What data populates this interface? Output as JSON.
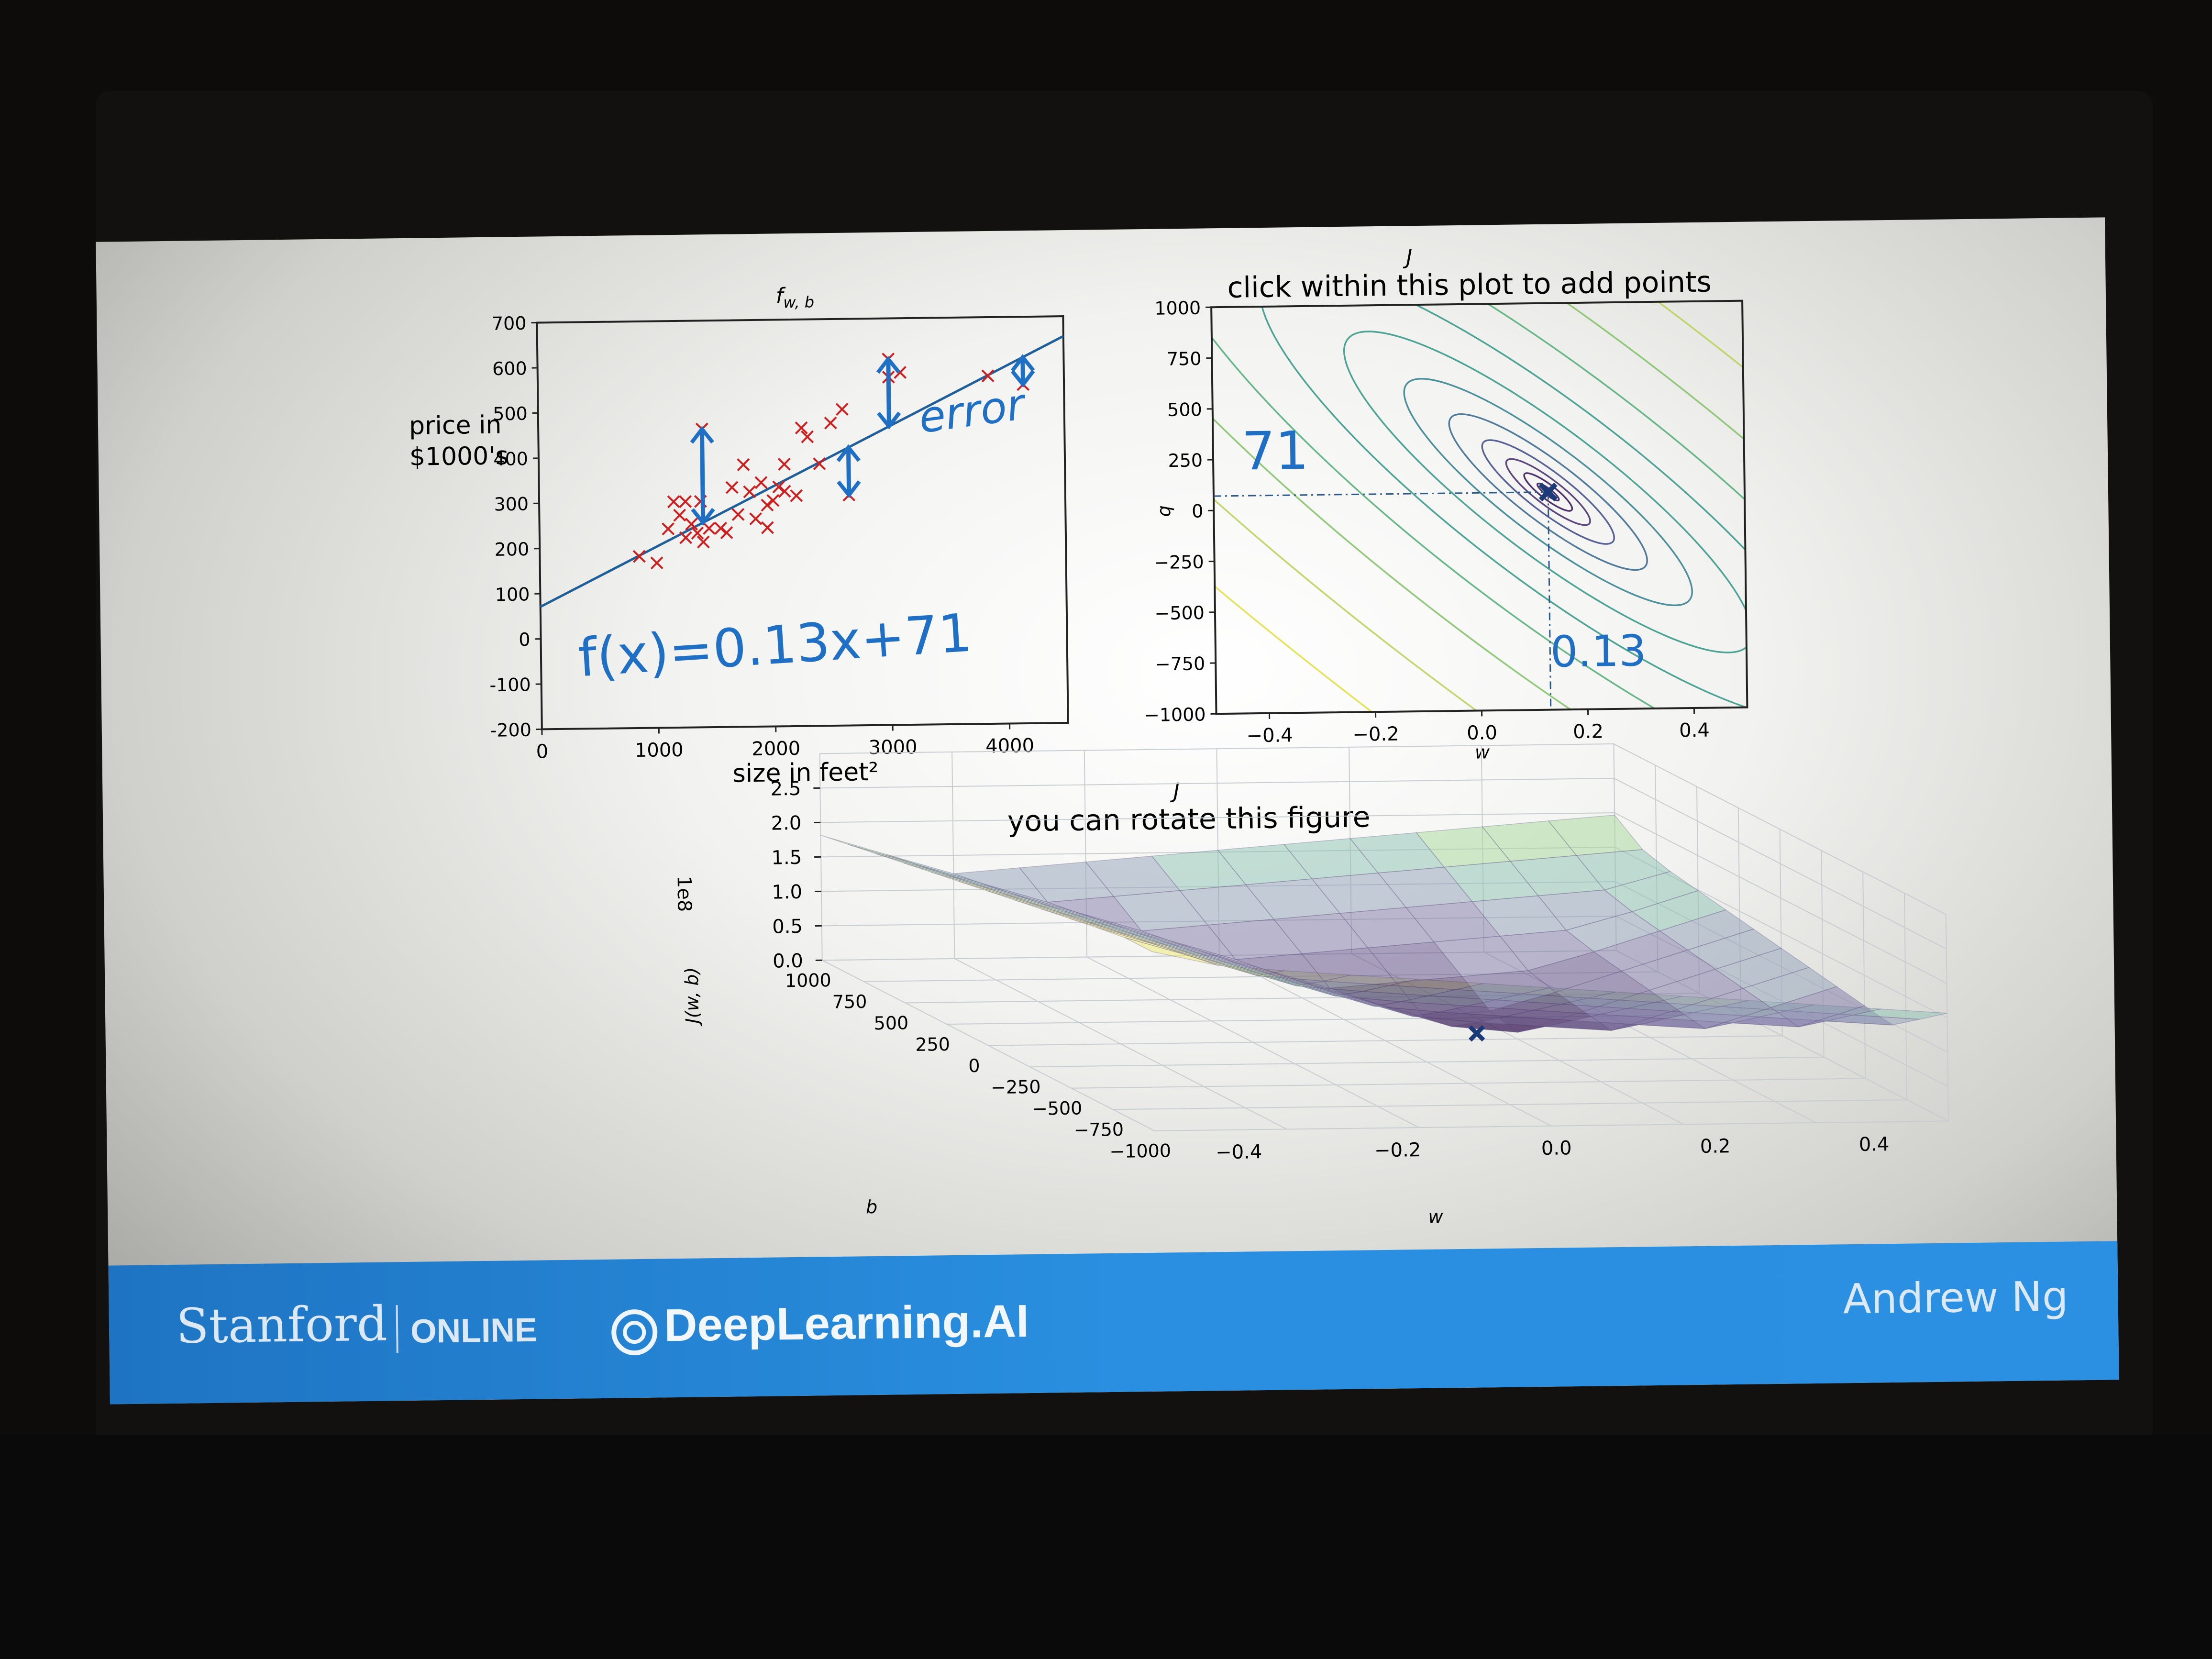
{
  "slide": {
    "footer": {
      "stanford": "Stanford",
      "online": "ONLINE",
      "deeplearning": "DeepLearning.AI",
      "author": "Andrew Ng"
    }
  },
  "colors": {
    "footer_blue": "#1e74c2",
    "data_point_red": "#cc1f1f",
    "fit_line_blue": "#1f5f9a",
    "ink_blue": "#1f6fc4",
    "marker_navy": "#1b3a78"
  },
  "chart_data": [
    {
      "type": "scatter",
      "title": "f_{w,b}",
      "title_main": "f",
      "title_sub": "w, b",
      "xlabel": "size in feet²",
      "ylabel_line1": "price in",
      "ylabel_line2": "$1000's",
      "xlim": [
        0,
        4500
      ],
      "ylim": [
        -200,
        700
      ],
      "xticks": [
        0,
        1000,
        2000,
        3000,
        4000
      ],
      "yticks": [
        700,
        600,
        500,
        400,
        300,
        200,
        100,
        0,
        -100,
        -200
      ],
      "points": [
        [
          850,
          180
        ],
        [
          1000,
          165
        ],
        [
          1100,
          240
        ],
        [
          1150,
          300
        ],
        [
          1200,
          270
        ],
        [
          1250,
          220
        ],
        [
          1250,
          300
        ],
        [
          1300,
          250
        ],
        [
          1350,
          230
        ],
        [
          1380,
          300
        ],
        [
          1400,
          210
        ],
        [
          1400,
          460
        ],
        [
          1450,
          240
        ],
        [
          1550,
          240
        ],
        [
          1600,
          230
        ],
        [
          1650,
          330
        ],
        [
          1700,
          270
        ],
        [
          1750,
          380
        ],
        [
          1800,
          320
        ],
        [
          1850,
          260
        ],
        [
          1900,
          340
        ],
        [
          1950,
          290
        ],
        [
          1950,
          240
        ],
        [
          2000,
          300
        ],
        [
          2050,
          330
        ],
        [
          2100,
          320
        ],
        [
          2200,
          310
        ],
        [
          2100,
          380
        ],
        [
          2250,
          460
        ],
        [
          2300,
          440
        ],
        [
          2400,
          380
        ],
        [
          2500,
          470
        ],
        [
          2600,
          500
        ],
        [
          2650,
          310
        ],
        [
          3000,
          570
        ],
        [
          3000,
          610
        ],
        [
          3100,
          580
        ],
        [
          3850,
          570
        ],
        [
          4150,
          550
        ]
      ],
      "fit_line": {
        "w": 0.13,
        "b": 71
      },
      "annotations": [
        "error",
        "f(x)=0.13x+71"
      ]
    },
    {
      "type": "contour",
      "title_top": "J",
      "title": "click within this plot to add points",
      "xlabel": "w",
      "ylabel": "b",
      "xlim": [
        -0.5,
        0.5
      ],
      "ylim": [
        -1000,
        1000
      ],
      "xticks": [
        -0.4,
        -0.2,
        0.0,
        0.2,
        0.4
      ],
      "xtick_labels": [
        "−0.4",
        "−0.2",
        "0.0",
        "0.2",
        "0.4"
      ],
      "yticks": [
        1000,
        750,
        500,
        250,
        0,
        -250,
        -500,
        -750,
        -1000
      ],
      "ytick_labels": [
        "1000",
        "750",
        "500",
        "250",
        "0",
        "−250",
        "−500",
        "−750",
        "−1000"
      ],
      "minimum": {
        "w": 0.13,
        "b": 71
      },
      "annotations": [
        "71",
        "0.13"
      ]
    },
    {
      "type": "surface",
      "title_top": "J",
      "title": "you can rotate this figure",
      "zlabel": "J(w, b)",
      "zscale_label": "1e8",
      "zticks": [
        "2.5",
        "2.0",
        "1.5",
        "1.0",
        "0.5",
        "0.0"
      ],
      "b_label": "b",
      "b_ticks": [
        "1000",
        "750",
        "500",
        "250",
        "0",
        "−250",
        "−500",
        "−750",
        "−1000"
      ],
      "w_label": "w",
      "w_ticks": [
        "−0.4",
        "−0.2",
        "0.0",
        "0.2",
        "0.4"
      ],
      "minimum": {
        "w": 0.13,
        "b": 71
      }
    }
  ]
}
